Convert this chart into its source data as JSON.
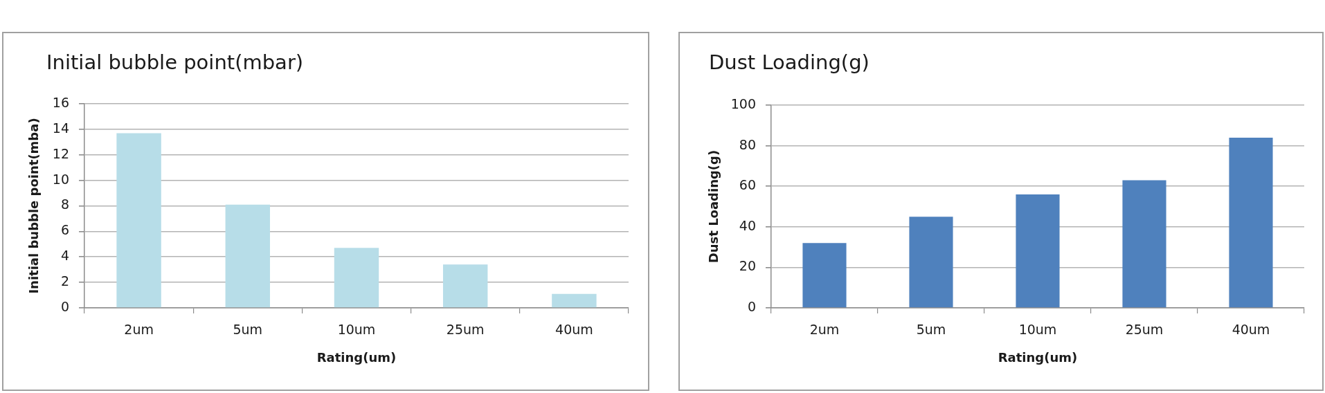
{
  "chart_data": [
    {
      "type": "bar",
      "title": "Initial bubble point(mbar)",
      "xlabel": "Rating(um)",
      "ylabel": "Initial bubble point(mba)",
      "categories": [
        "2um",
        "5um",
        "10um",
        "25um",
        "40um"
      ],
      "values": [
        13.7,
        8.1,
        4.7,
        3.4,
        1.1
      ],
      "color": "#b7dde8",
      "ylim": [
        0,
        16
      ],
      "yticks": [
        0,
        2,
        4,
        6,
        8,
        10,
        12,
        14,
        16
      ],
      "grid": "y"
    },
    {
      "type": "bar",
      "title": "Dust Loading(g)",
      "xlabel": "Rating(um)",
      "ylabel": "Dust Loading(g)",
      "categories": [
        "2um",
        "5um",
        "10um",
        "25um",
        "40um"
      ],
      "values": [
        32,
        45,
        56,
        63,
        84
      ],
      "color": "#4f81bd",
      "ylim": [
        0,
        100
      ],
      "yticks": [
        0,
        20,
        40,
        60,
        80,
        100
      ],
      "grid": "y"
    }
  ]
}
